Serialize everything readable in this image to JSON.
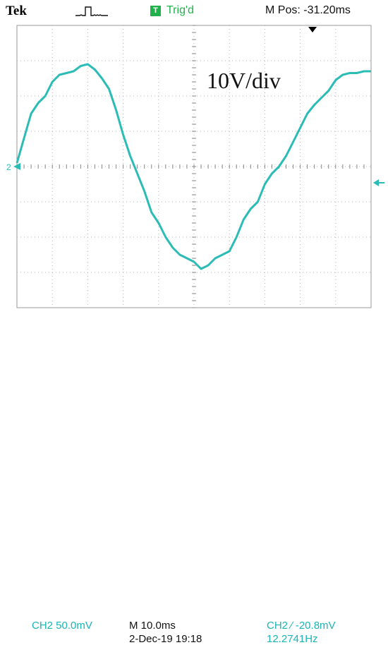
{
  "header": {
    "brand": "Tek",
    "trigger_badge": "T",
    "trigger_status": "Trig'd",
    "m_pos": "M Pos: -31.20ms"
  },
  "annotation": "10V/div",
  "footer": {
    "channel_scale": "CH2  50.0mV",
    "timebase": "M 10.0ms",
    "datetime": "2-Dec-19 19:18",
    "trigger_level": "CH2 ∕ -20.8mV",
    "frequency": "12.2741Hz"
  },
  "colors": {
    "trace": "#2bbcb6",
    "trig_green": "#22b24c"
  },
  "chart_data": {
    "type": "line",
    "title": "",
    "xlabel": "",
    "ylabel": "",
    "x_unit": "ms",
    "y_unit": "div",
    "xlim": [
      0,
      100
    ],
    "ylim": [
      -4,
      4
    ],
    "grid": true,
    "ground_marker_label": "2",
    "series": [
      {
        "x": [
          0,
          2,
          4,
          6,
          8,
          10,
          12,
          14,
          16,
          18,
          20,
          22,
          24,
          26,
          28,
          30,
          32,
          34,
          36,
          38,
          40,
          42,
          44,
          46,
          48,
          50,
          52,
          54,
          56,
          58,
          60,
          62,
          64,
          66,
          68,
          70,
          72,
          74,
          76,
          78,
          80,
          82,
          84,
          86,
          88,
          90,
          92,
          94,
          96,
          98,
          100
        ],
        "y": [
          0.1,
          0.8,
          1.5,
          1.8,
          2.0,
          2.4,
          2.6,
          2.65,
          2.7,
          2.85,
          2.9,
          2.75,
          2.5,
          2.2,
          1.6,
          0.9,
          0.3,
          -0.2,
          -0.7,
          -1.3,
          -1.6,
          -2.0,
          -2.3,
          -2.5,
          -2.6,
          -2.7,
          -2.9,
          -2.8,
          -2.6,
          -2.5,
          -2.4,
          -2.0,
          -1.5,
          -1.2,
          -1.0,
          -0.5,
          -0.2,
          0.0,
          0.3,
          0.7,
          1.1,
          1.5,
          1.75,
          1.95,
          2.15,
          2.45,
          2.6,
          2.65,
          2.65,
          2.7,
          2.7
        ]
      }
    ]
  }
}
